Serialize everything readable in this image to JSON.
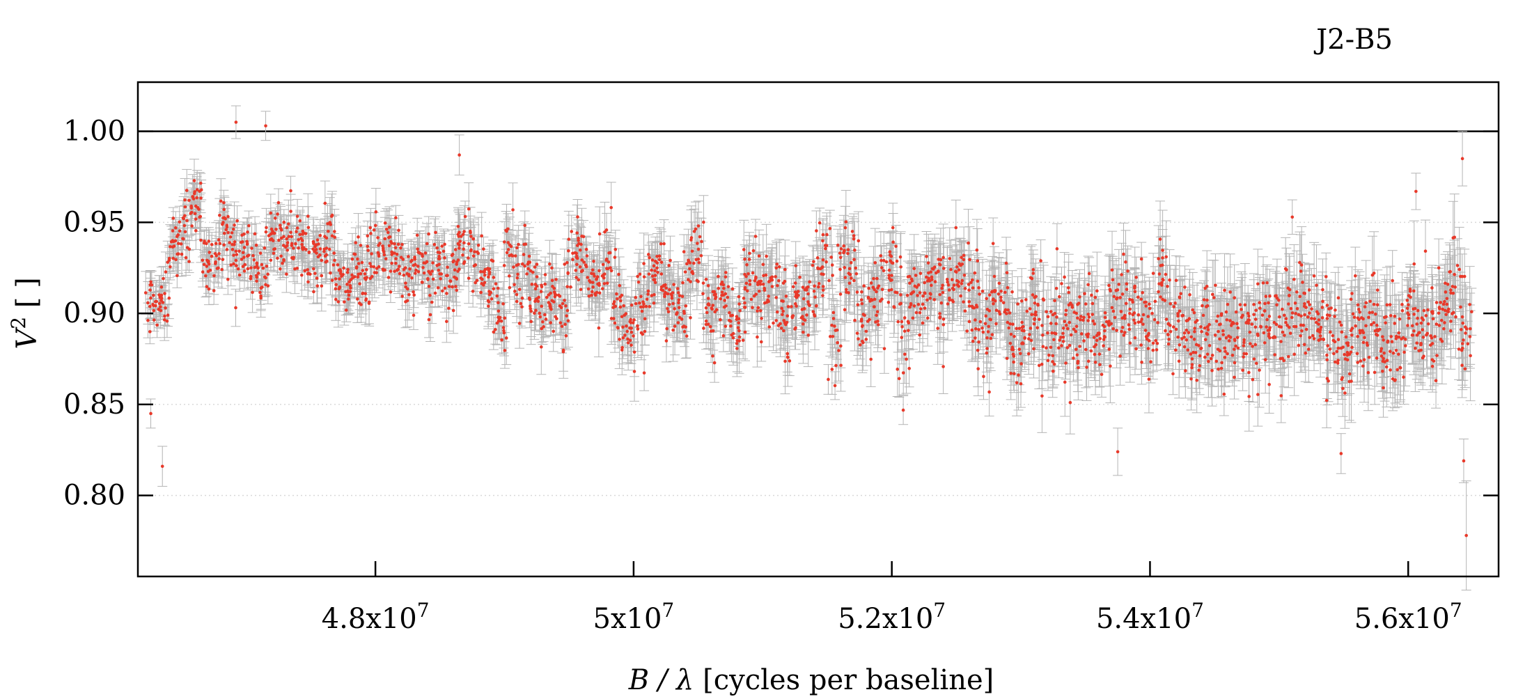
{
  "chart_data": {
    "type": "scatter",
    "title": "J2-B5",
    "xlabel": "B / λ [cycles per baseline]",
    "xlabel_parts": {
      "var": "B / λ",
      "unit": " [cycles per baseline]"
    },
    "ylabel": "V² [ ]",
    "ylabel_parts": {
      "var": "V",
      "sup": "2",
      "unit": " [ ]"
    },
    "xlim": [
      46160000,
      56700000
    ],
    "ylim": [
      0.7555,
      1.027
    ],
    "x_ticks": [
      {
        "value": 48000000,
        "mantissa": "4.8x10",
        "exp": "7"
      },
      {
        "value": 50000000,
        "mantissa": "5x10",
        "exp": "7"
      },
      {
        "value": 52000000,
        "mantissa": "5.2x10",
        "exp": "7"
      },
      {
        "value": 54000000,
        "mantissa": "5.4x10",
        "exp": "7"
      },
      {
        "value": 56000000,
        "mantissa": "5.6x10",
        "exp": "7"
      }
    ],
    "y_ticks": [
      {
        "value": 0.8,
        "label": "0.80"
      },
      {
        "value": 0.85,
        "label": "0.85"
      },
      {
        "value": 0.9,
        "label": "0.90"
      },
      {
        "value": 0.95,
        "label": "0.95"
      },
      {
        "value": 1.0,
        "label": "1.00"
      }
    ],
    "reference_line": 1.0,
    "grid": "horizontal dotted at 0.80, 0.85, 0.95",
    "point_color": "#e8392a",
    "errorbar_color": "#b4b4b4",
    "n_points": 2600,
    "trend": [
      {
        "x": 46200000,
        "y": 0.918
      },
      {
        "x": 46500000,
        "y": 0.93
      },
      {
        "x": 46900000,
        "y": 0.936
      },
      {
        "x": 47200000,
        "y": 0.935
      },
      {
        "x": 47600000,
        "y": 0.93
      },
      {
        "x": 48000000,
        "y": 0.924
      },
      {
        "x": 48500000,
        "y": 0.918
      },
      {
        "x": 49000000,
        "y": 0.916
      },
      {
        "x": 49500000,
        "y": 0.914
      },
      {
        "x": 50000000,
        "y": 0.911
      },
      {
        "x": 50500000,
        "y": 0.908
      },
      {
        "x": 51000000,
        "y": 0.907
      },
      {
        "x": 51500000,
        "y": 0.906
      },
      {
        "x": 52000000,
        "y": 0.906
      },
      {
        "x": 52500000,
        "y": 0.903
      },
      {
        "x": 53000000,
        "y": 0.898
      },
      {
        "x": 53500000,
        "y": 0.894
      },
      {
        "x": 54000000,
        "y": 0.893
      },
      {
        "x": 54500000,
        "y": 0.895
      },
      {
        "x": 55000000,
        "y": 0.896
      },
      {
        "x": 55500000,
        "y": 0.895
      },
      {
        "x": 56000000,
        "y": 0.895
      },
      {
        "x": 56500000,
        "y": 0.897
      }
    ],
    "scatter_sd": 0.018,
    "typical_error": 0.01,
    "notable_points": [
      {
        "x": 46260000,
        "y": 0.845,
        "err": 0.008
      },
      {
        "x": 46350000,
        "y": 0.816,
        "err": 0.011
      },
      {
        "x": 46920000,
        "y": 1.005,
        "err": 0.009
      },
      {
        "x": 47150000,
        "y": 1.003,
        "err": 0.008
      },
      {
        "x": 48650000,
        "y": 0.987,
        "err": 0.011
      },
      {
        "x": 53750000,
        "y": 0.824,
        "err": 0.013
      },
      {
        "x": 55480000,
        "y": 0.823,
        "err": 0.011
      },
      {
        "x": 56060000,
        "y": 0.967,
        "err": 0.01
      },
      {
        "x": 56420000,
        "y": 0.985,
        "err": 0.015
      },
      {
        "x": 56430000,
        "y": 0.819,
        "err": 0.012
      },
      {
        "x": 56450000,
        "y": 0.778,
        "err": 0.03
      }
    ]
  }
}
